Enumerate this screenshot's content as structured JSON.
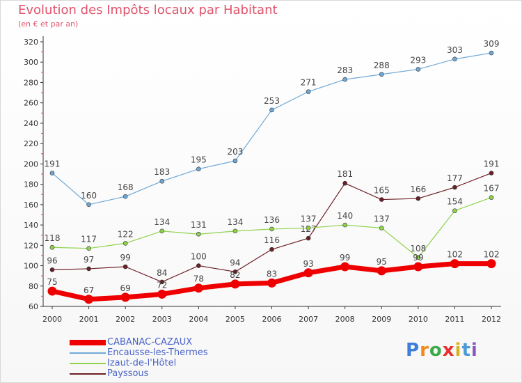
{
  "header": {
    "title": "Evolution des Impôts locaux par Habitant",
    "subtitle": "(en € et par an)"
  },
  "brand": {
    "name": "Proxiti",
    "letter_colors": [
      "#3d7fd8",
      "#f08a1e",
      "#3daa4a",
      "#e8302c",
      "#d6b51a",
      "#4a9bd8",
      "#8a56c0"
    ]
  },
  "chart_data": {
    "type": "line",
    "x": [
      "2000",
      "2001",
      "2002",
      "2003",
      "2004",
      "2005",
      "2006",
      "2007",
      "2008",
      "2009",
      "2010",
      "2011",
      "2012"
    ],
    "yticks": [
      60,
      80,
      100,
      120,
      140,
      160,
      180,
      200,
      220,
      240,
      260,
      280,
      300,
      320
    ],
    "ylim": [
      60,
      320
    ],
    "grid": false,
    "legend_position": "bottom-left",
    "series": [
      {
        "name": "Payssous",
        "color": "#6b1f26",
        "values": [
          96,
          97,
          99,
          84,
          100,
          94,
          116,
          127,
          181,
          165,
          166,
          177,
          191
        ],
        "labels": [
          "96",
          "97",
          "99",
          "84",
          "100",
          "94",
          "116",
          "127",
          "181",
          "165",
          "166",
          "177",
          "191"
        ],
        "emphasis": false
      },
      {
        "name": "Izaut-de-l'Hôtel",
        "color": "#8fd24b",
        "values": [
          118,
          117,
          122,
          134,
          131,
          134,
          136,
          137,
          140,
          137,
          108,
          154,
          167
        ],
        "labels": [
          "118",
          "117",
          "122",
          "134",
          "131",
          "134",
          "136",
          "137",
          "140",
          "137",
          "108",
          "154",
          "167"
        ],
        "emphasis": false
      },
      {
        "name": "Encausse-les-Thermes",
        "color": "#6fa8d6",
        "values": [
          191,
          160,
          168,
          183,
          195,
          203,
          253,
          271,
          283,
          288,
          293,
          303,
          309
        ],
        "labels": [
          "191",
          "160",
          "168",
          "183",
          "195",
          "203",
          "253",
          "271",
          "283",
          "288",
          "293",
          "303",
          "309"
        ],
        "emphasis": false
      },
      {
        "name": "CABANAC-CAZAUX",
        "color": "#ee0000",
        "values": [
          75,
          67,
          69,
          72,
          78,
          82,
          83,
          93,
          99,
          95,
          99,
          102,
          102
        ],
        "labels": [
          "75",
          "67",
          "69",
          "72",
          "78",
          "82",
          "83",
          "93",
          "99",
          "95",
          "99",
          "102",
          "102"
        ],
        "emphasis": true
      }
    ],
    "legend_order": [
      "CABANAC-CAZAUX",
      "Encausse-les-Thermes",
      "Izaut-de-l'Hôtel",
      "Payssous"
    ]
  }
}
